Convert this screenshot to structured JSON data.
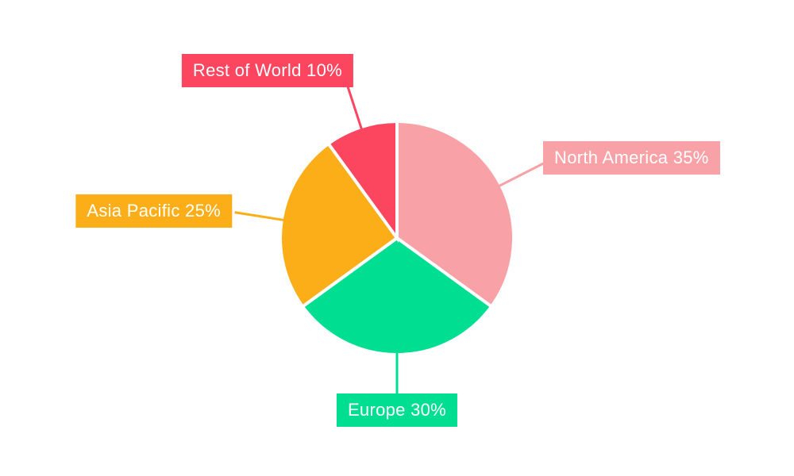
{
  "page": {
    "background": "#FFFFFF"
  },
  "chart_data": {
    "type": "pie",
    "title": "",
    "categories": [
      "North America",
      "Europe",
      "Asia Pacific",
      "Rest of World"
    ],
    "values": [
      35,
      30,
      25,
      10
    ],
    "unit": "%",
    "start_angle_deg": 0,
    "direction": "clockwise",
    "legend_position": "none",
    "label_style": "external-boxed-callouts-with-leader-lines",
    "label_text_color": "#FFFFFF",
    "slice_gap_color": "#FFFFFF",
    "slices": [
      {
        "label": "North America",
        "value": 35,
        "display": "North America 35%",
        "color": "#F8A1A7"
      },
      {
        "label": "Europe",
        "value": 30,
        "display": "Europe 30%",
        "color": "#00DE92"
      },
      {
        "label": "Asia Pacific",
        "value": 25,
        "display": "Asia Pacific 25%",
        "color": "#FBAE17"
      },
      {
        "label": "Rest of World",
        "value": 10,
        "display": "Rest of World 10%",
        "color": "#FC455F"
      }
    ]
  }
}
